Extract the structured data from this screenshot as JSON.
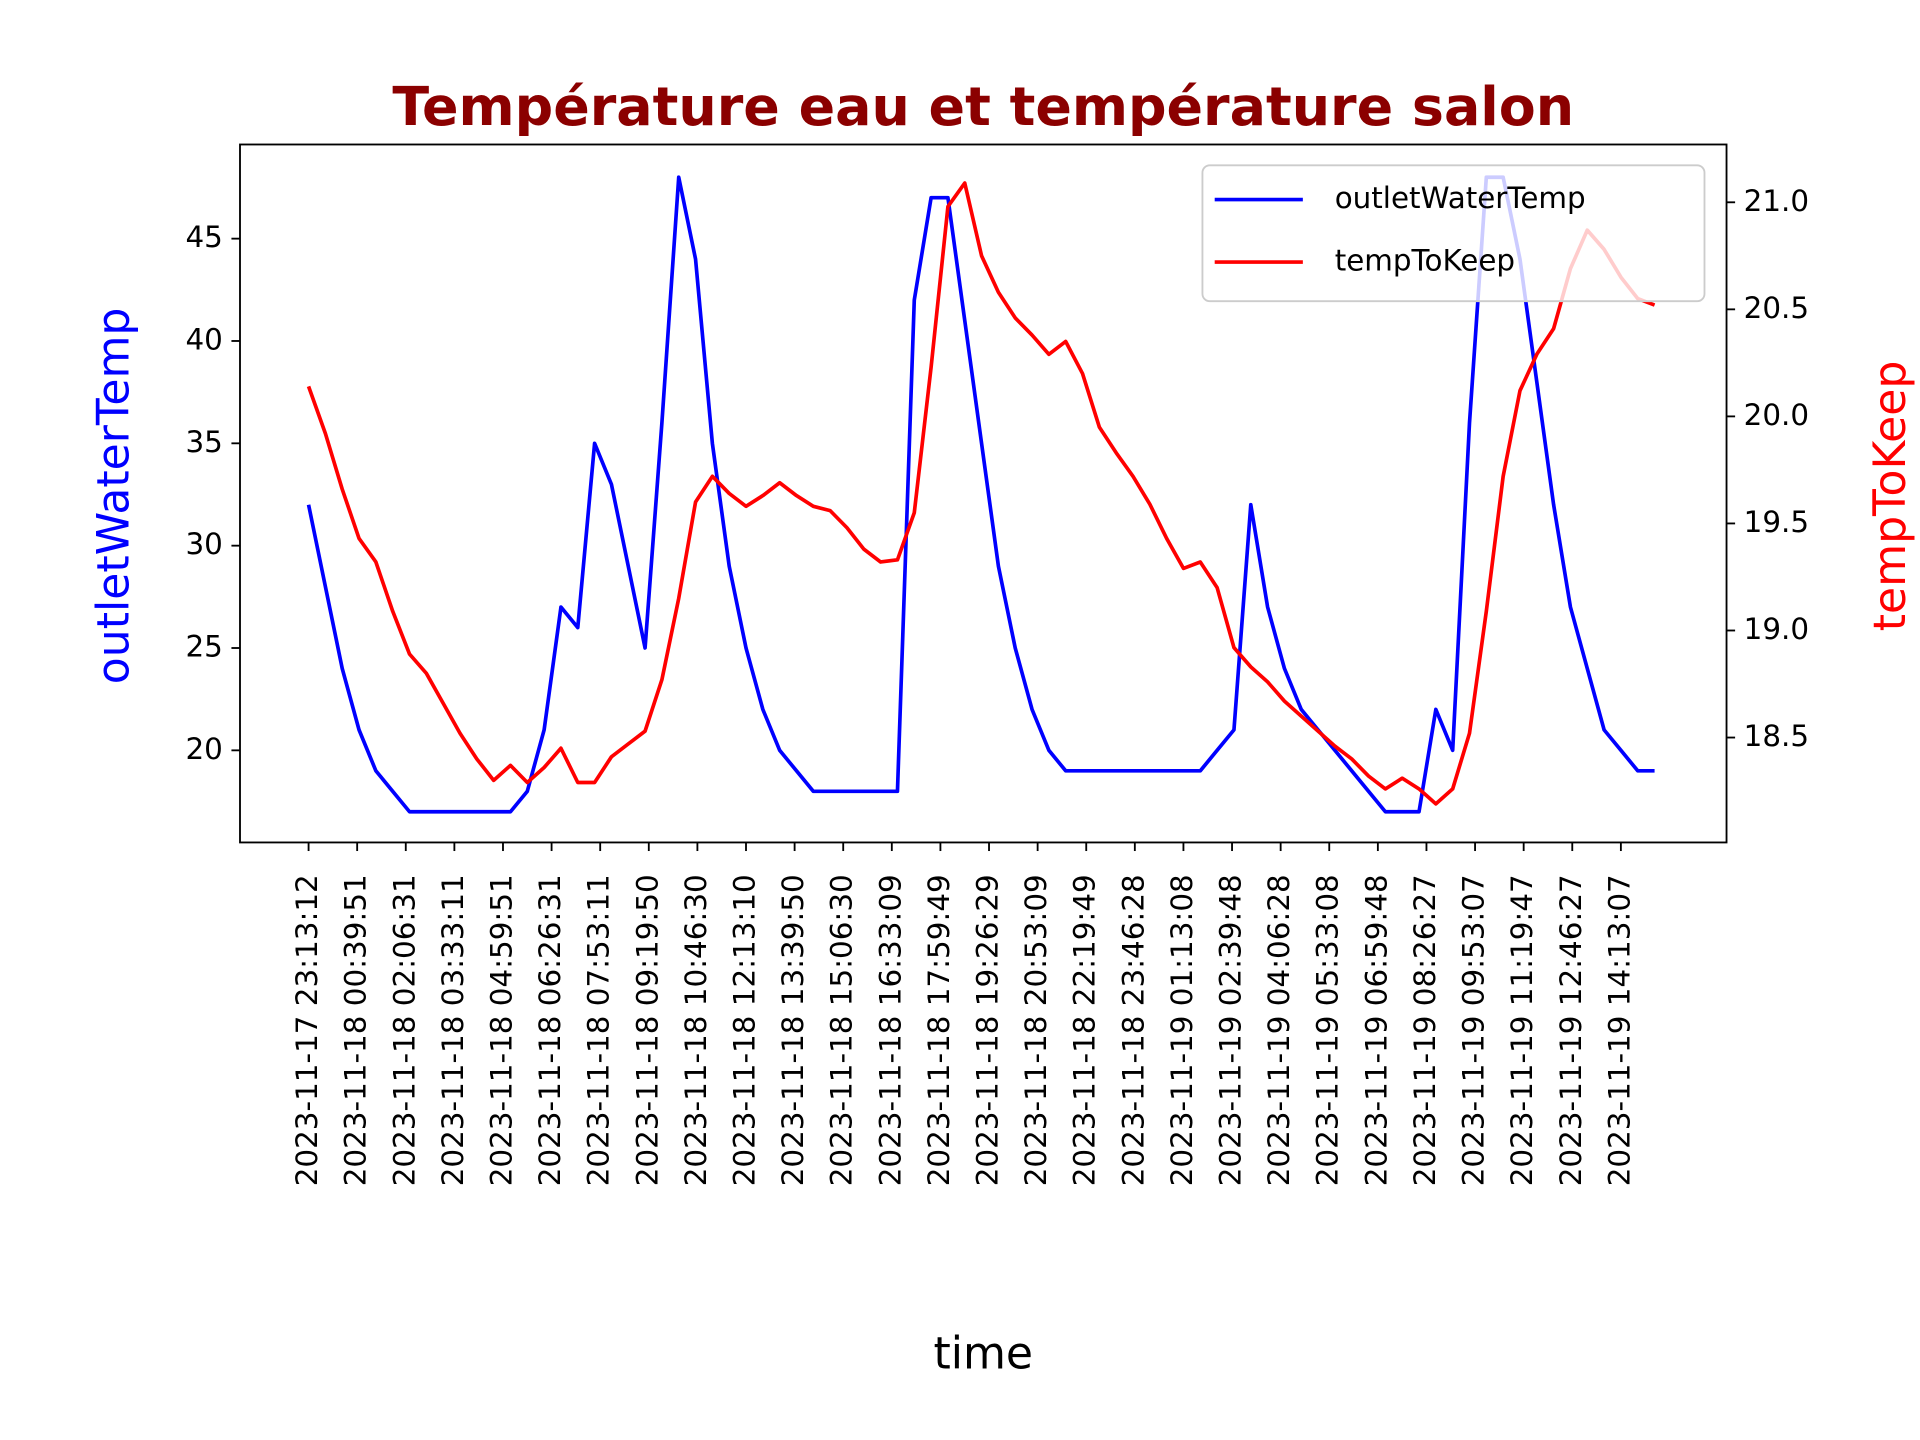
{
  "chart_data": {
    "type": "line",
    "title": "Température eau et température salon",
    "xlabel": "time",
    "ylabel": "outletWaterTemp",
    "y2label": "tempToKeep",
    "x": [
      "2023-11-17 23:13:12",
      "2023-11-17 23:43:12",
      "2023-11-18 00:13:12",
      "2023-11-18 00:43:12",
      "2023-11-18 01:13:12",
      "2023-11-18 01:43:12",
      "2023-11-18 02:13:12",
      "2023-11-18 02:43:12",
      "2023-11-18 03:13:12",
      "2023-11-18 03:43:12",
      "2023-11-18 04:13:12",
      "2023-11-18 04:43:12",
      "2023-11-18 05:13:12",
      "2023-11-18 05:43:12",
      "2023-11-18 06:13:12",
      "2023-11-18 06:43:12",
      "2023-11-18 07:13:12",
      "2023-11-18 07:43:12",
      "2023-11-18 08:13:12",
      "2023-11-18 08:43:12",
      "2023-11-18 09:13:12",
      "2023-11-18 09:43:12",
      "2023-11-18 10:13:12",
      "2023-11-18 10:43:12",
      "2023-11-18 11:13:12",
      "2023-11-18 11:43:12",
      "2023-11-18 12:13:12",
      "2023-11-18 12:43:12",
      "2023-11-18 13:13:12",
      "2023-11-18 13:43:12",
      "2023-11-18 14:13:12",
      "2023-11-18 14:43:12",
      "2023-11-18 15:13:12",
      "2023-11-18 15:43:12",
      "2023-11-18 16:13:12",
      "2023-11-18 16:43:12",
      "2023-11-18 17:13:12",
      "2023-11-18 17:43:12",
      "2023-11-18 18:13:12",
      "2023-11-18 18:43:12",
      "2023-11-18 19:13:12",
      "2023-11-18 19:43:12",
      "2023-11-18 20:13:12",
      "2023-11-18 20:43:12",
      "2023-11-18 21:13:12",
      "2023-11-18 21:43:12",
      "2023-11-18 22:13:12",
      "2023-11-18 22:43:12",
      "2023-11-18 23:13:12",
      "2023-11-18 23:43:12",
      "2023-11-19 00:13:12",
      "2023-11-19 00:43:12",
      "2023-11-19 01:13:12",
      "2023-11-19 01:43:12",
      "2023-11-19 02:13:12",
      "2023-11-19 02:43:12",
      "2023-11-19 03:13:12",
      "2023-11-19 03:43:12",
      "2023-11-19 04:13:12",
      "2023-11-19 04:43:12",
      "2023-11-19 05:13:12",
      "2023-11-19 05:43:12",
      "2023-11-19 06:13:12",
      "2023-11-19 06:43:12",
      "2023-11-19 07:13:12",
      "2023-11-19 07:43:12",
      "2023-11-19 08:13:12",
      "2023-11-19 08:43:12",
      "2023-11-19 09:13:12",
      "2023-11-19 09:43:12",
      "2023-11-19 10:13:12",
      "2023-11-19 10:43:12",
      "2023-11-19 11:13:12",
      "2023-11-19 11:43:12",
      "2023-11-19 12:13:12",
      "2023-11-19 12:43:12",
      "2023-11-19 13:13:12",
      "2023-11-19 13:43:12",
      "2023-11-19 14:13:12",
      "2023-11-19 14:43:12",
      "2023-11-19 15:13:12"
    ],
    "series": [
      {
        "name": "outletWaterTemp",
        "color": "#0000ff",
        "axis": "y",
        "values": [
          32,
          28,
          24,
          21,
          19,
          18,
          17,
          17,
          17,
          17,
          17,
          17,
          17,
          18,
          21,
          27,
          26,
          35,
          33,
          29,
          25,
          36,
          48,
          44,
          35,
          29,
          25,
          22,
          20,
          19,
          18,
          18,
          18,
          18,
          18,
          18,
          42,
          47,
          47,
          41,
          35,
          29,
          25,
          22,
          20,
          19,
          19,
          19,
          19,
          19,
          19,
          19,
          19,
          19,
          20,
          21,
          32,
          27,
          24,
          22,
          21,
          20,
          19,
          18,
          17,
          17,
          17,
          22,
          20,
          36,
          48,
          48,
          44,
          38,
          32,
          27,
          24,
          21,
          20,
          19,
          19
        ]
      },
      {
        "name": "tempToKeep",
        "color": "#ff0000",
        "axis": "y2",
        "values": [
          20.14,
          19.92,
          19.66,
          19.43,
          19.32,
          19.09,
          18.89,
          18.8,
          18.66,
          18.52,
          18.4,
          18.3,
          18.37,
          18.29,
          18.36,
          18.45,
          18.29,
          18.29,
          18.41,
          18.47,
          18.53,
          18.77,
          19.15,
          19.6,
          19.72,
          19.64,
          19.58,
          19.63,
          19.69,
          19.63,
          19.58,
          19.56,
          19.48,
          19.38,
          19.32,
          19.33,
          19.55,
          20.23,
          20.98,
          21.09,
          20.75,
          20.58,
          20.46,
          20.38,
          20.29,
          20.35,
          20.2,
          19.95,
          19.83,
          19.72,
          19.59,
          19.43,
          19.29,
          19.32,
          19.2,
          18.92,
          18.83,
          18.76,
          18.67,
          18.6,
          18.53,
          18.46,
          18.4,
          18.32,
          18.26,
          18.31,
          18.26,
          18.19,
          18.26,
          18.52,
          19.09,
          19.72,
          20.12,
          20.29,
          20.41,
          20.69,
          20.87,
          20.78,
          20.65,
          20.55,
          20.52
        ]
      }
    ],
    "xlim": [
      "2023-11-17 21:10:56",
      "2023-11-19 17:21:30"
    ],
    "xticks": [
      "2023-11-17 23:13:12",
      "2023-11-18 00:39:51",
      "2023-11-18 02:06:31",
      "2023-11-18 03:33:11",
      "2023-11-18 04:59:51",
      "2023-11-18 06:26:31",
      "2023-11-18 07:53:11",
      "2023-11-18 09:19:50",
      "2023-11-18 10:46:30",
      "2023-11-18 12:13:10",
      "2023-11-18 13:39:50",
      "2023-11-18 15:06:30",
      "2023-11-18 16:33:09",
      "2023-11-18 17:59:49",
      "2023-11-18 19:26:29",
      "2023-11-18 20:53:09",
      "2023-11-18 22:19:49",
      "2023-11-18 23:46:28",
      "2023-11-19 01:13:08",
      "2023-11-19 02:39:48",
      "2023-11-19 04:06:28",
      "2023-11-19 05:33:08",
      "2023-11-19 06:59:48",
      "2023-11-19 08:26:27",
      "2023-11-19 09:53:07",
      "2023-11-19 11:19:47",
      "2023-11-19 12:46:27",
      "2023-11-19 14:13:07"
    ],
    "ylim": [
      15.5,
      49.6
    ],
    "yticks": [
      20,
      25,
      30,
      35,
      40,
      45
    ],
    "y2lim": [
      18.01,
      21.27
    ],
    "y2ticks": [
      18.5,
      {
        "value": 19,
        "label": "19.0"
      },
      19.5,
      {
        "value": 20,
        "label": "20.0"
      },
      20.5,
      {
        "value": 21,
        "label": "21.0"
      }
    ],
    "legend": "upper right",
    "grid": false
  }
}
